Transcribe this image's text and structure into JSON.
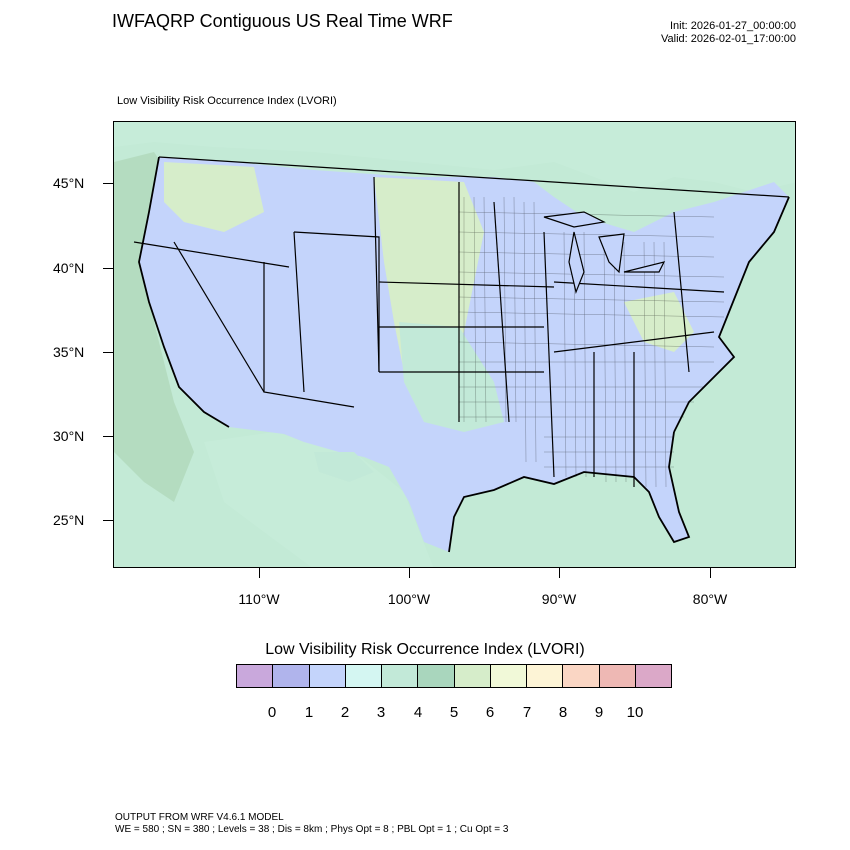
{
  "header": {
    "title": "IWFAQRP Contiguous US Real Time WRF",
    "init": "Init: 2026-01-27_00:00:00",
    "valid": "Valid: 2026-02-01_17:00:00"
  },
  "map": {
    "subtitle": "Low Visibility Risk Occurrence Index   (LVORI)",
    "lat_labels": [
      "45°N",
      "40°N",
      "35°N",
      "30°N",
      "25°N"
    ],
    "lon_labels": [
      "110°W",
      "100°W",
      "90°W",
      "80°W"
    ]
  },
  "colorbar": {
    "title": "Low Visibility Risk Occurrence Index  (LVORI)",
    "labels": [
      "0",
      "1",
      "2",
      "3",
      "4",
      "5",
      "6",
      "7",
      "8",
      "9",
      "10"
    ],
    "colors": [
      "#c9a8dc",
      "#b0b4ec",
      "#c4d4fb",
      "#d4f6f2",
      "#c2e9d8",
      "#a9d6bd",
      "#d6edca",
      "#f1f9d8",
      "#fdf4d6",
      "#fad6c4",
      "#eeb8b4",
      "#dba8c8"
    ]
  },
  "footer": {
    "line1": "OUTPUT FROM WRF V4.6.1 MODEL",
    "line2": "WE = 580 ; SN = 380 ; Levels = 38 ; Dis = 8km ; Phys Opt = 8 ; PBL Opt = 1 ; Cu Opt = 3"
  }
}
